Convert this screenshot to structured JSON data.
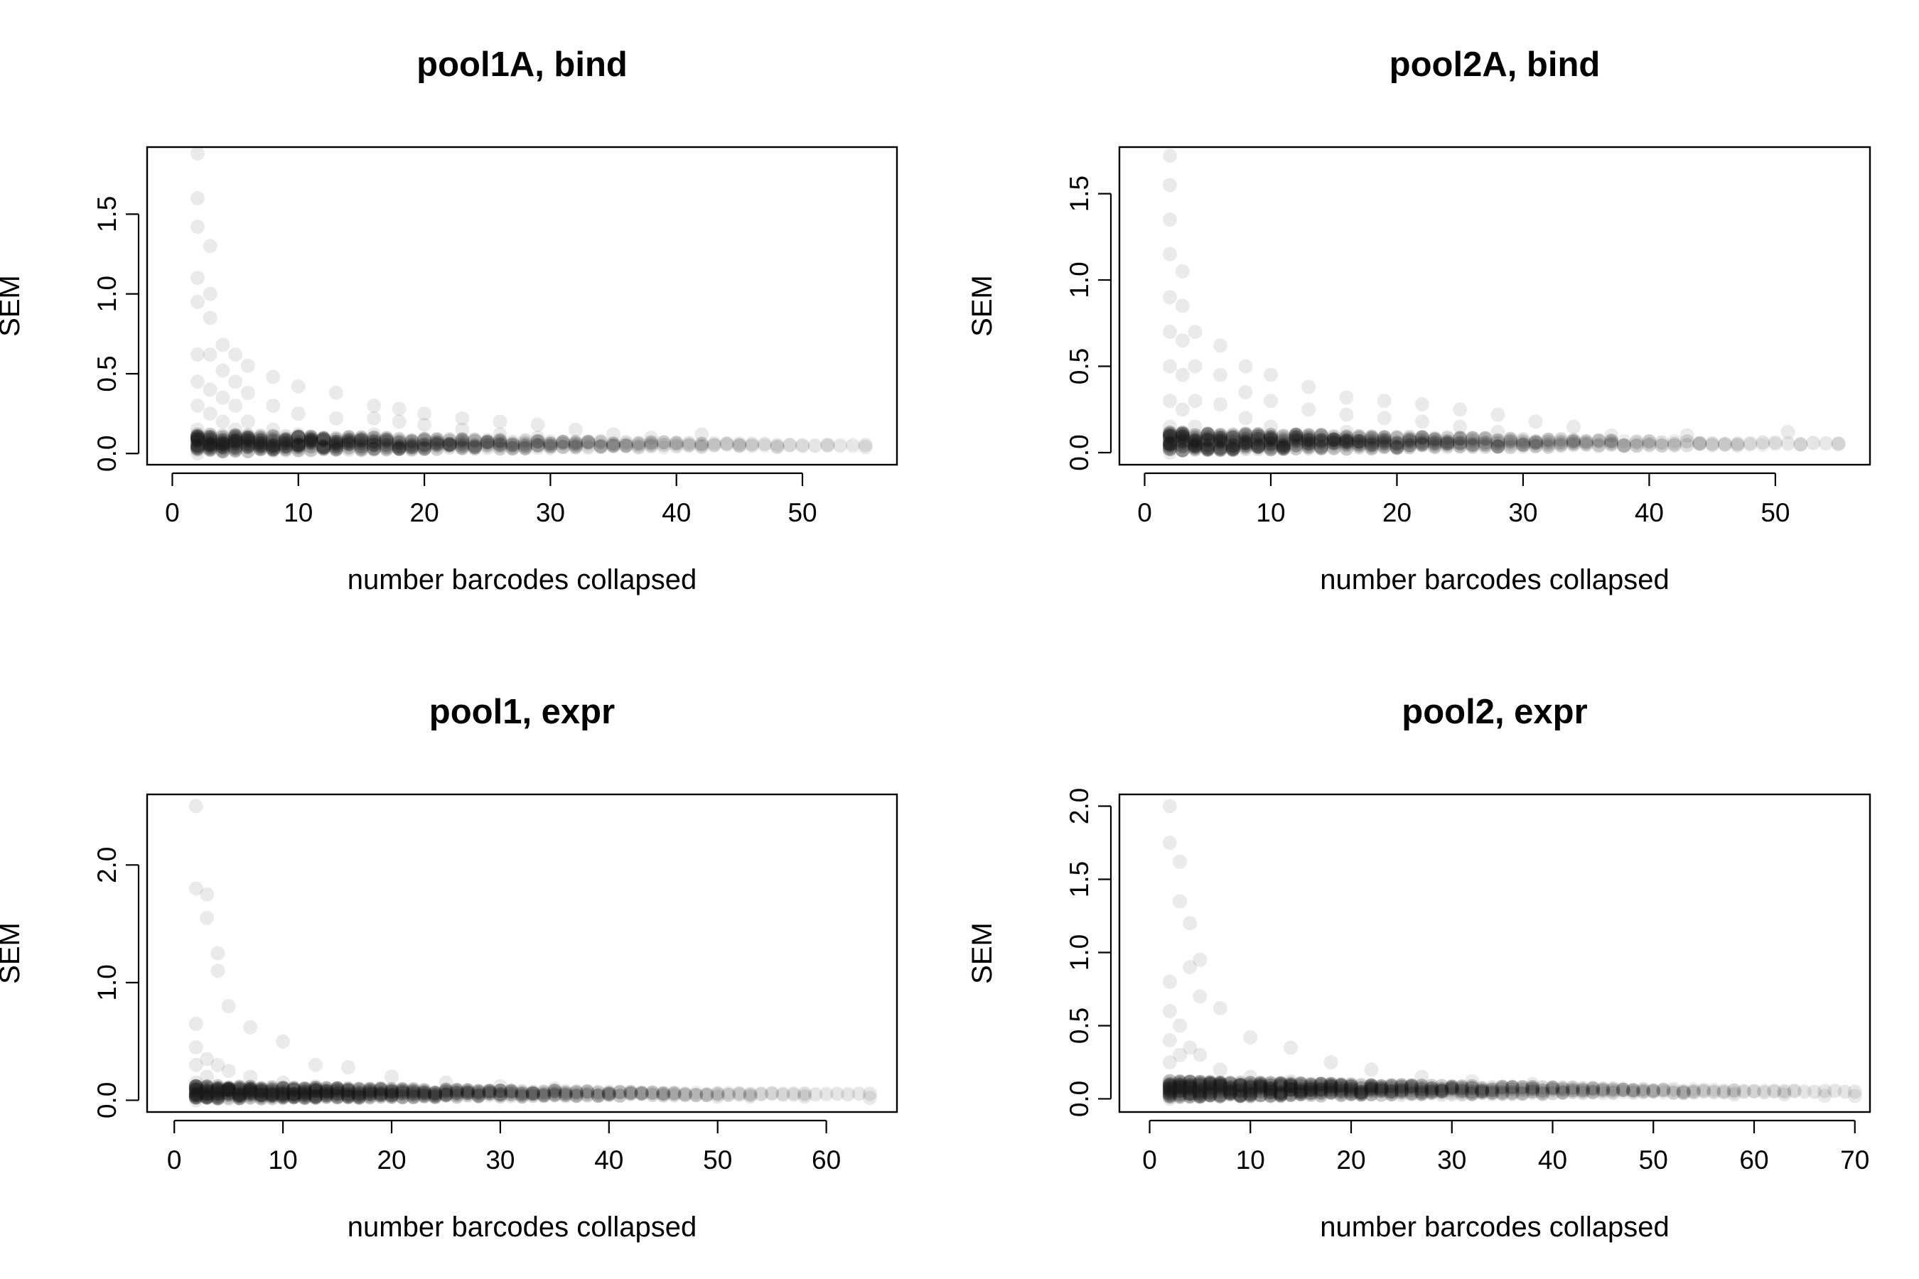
{
  "chart_data": [
    {
      "type": "scatter",
      "title": "pool1A, bind",
      "xlabel": "number barcodes collapsed",
      "ylabel": "SEM",
      "xlim": [
        -2,
        57.5
      ],
      "ylim": [
        -0.07,
        1.92
      ],
      "xticks": [
        0,
        10,
        20,
        30,
        40,
        50
      ],
      "yticks": [
        0.0,
        0.5,
        1.0,
        1.5
      ],
      "xtick_labels": [
        "0",
        "10",
        "20",
        "30",
        "40",
        "50"
      ],
      "ytick_labels": [
        "0.0",
        "0.5",
        "1.0",
        "1.5"
      ],
      "grid": false,
      "legend": "none",
      "point_color": "#1a1a1a",
      "x_max_observed": 55,
      "y_max_observed": 1.88,
      "dense_band_sem": 0.05,
      "points": [
        [
          2,
          1.88
        ],
        [
          2,
          1.6
        ],
        [
          2,
          1.42
        ],
        [
          2,
          1.1
        ],
        [
          2,
          0.95
        ],
        [
          2,
          0.62
        ],
        [
          2,
          0.45
        ],
        [
          2,
          0.3
        ],
        [
          2,
          0.15
        ],
        [
          2,
          0.05
        ],
        [
          2,
          0.0
        ],
        [
          3,
          1.3
        ],
        [
          3,
          1.0
        ],
        [
          3,
          0.85
        ],
        [
          3,
          0.62
        ],
        [
          3,
          0.4
        ],
        [
          3,
          0.25
        ],
        [
          3,
          0.12
        ],
        [
          3,
          0.05
        ],
        [
          4,
          0.68
        ],
        [
          4,
          0.52
        ],
        [
          4,
          0.35
        ],
        [
          4,
          0.2
        ],
        [
          4,
          0.05
        ],
        [
          5,
          0.62
        ],
        [
          5,
          0.45
        ],
        [
          5,
          0.3
        ],
        [
          5,
          0.15
        ],
        [
          5,
          0.05
        ],
        [
          6,
          0.55
        ],
        [
          6,
          0.38
        ],
        [
          6,
          0.2
        ],
        [
          6,
          0.05
        ],
        [
          8,
          0.48
        ],
        [
          8,
          0.3
        ],
        [
          8,
          0.15
        ],
        [
          8,
          0.05
        ],
        [
          10,
          0.42
        ],
        [
          10,
          0.25
        ],
        [
          10,
          0.12
        ],
        [
          10,
          0.05
        ],
        [
          13,
          0.38
        ],
        [
          13,
          0.22
        ],
        [
          13,
          0.05
        ],
        [
          16,
          0.3
        ],
        [
          16,
          0.22
        ],
        [
          16,
          0.12
        ],
        [
          16,
          0.05
        ],
        [
          18,
          0.28
        ],
        [
          18,
          0.2
        ],
        [
          18,
          0.05
        ],
        [
          20,
          0.25
        ],
        [
          20,
          0.18
        ],
        [
          20,
          0.05
        ],
        [
          23,
          0.22
        ],
        [
          23,
          0.15
        ],
        [
          23,
          0.05
        ],
        [
          26,
          0.2
        ],
        [
          26,
          0.12
        ],
        [
          26,
          0.05
        ],
        [
          29,
          0.18
        ],
        [
          29,
          0.1
        ],
        [
          29,
          0.05
        ],
        [
          32,
          0.15
        ],
        [
          32,
          0.05
        ],
        [
          35,
          0.12
        ],
        [
          35,
          0.05
        ],
        [
          38,
          0.1
        ],
        [
          38,
          0.05
        ],
        [
          40,
          0.05
        ],
        [
          42,
          0.12
        ],
        [
          42,
          0.04
        ],
        [
          45,
          0.05
        ],
        [
          48,
          0.04
        ],
        [
          52,
          0.05
        ],
        [
          55,
          0.04
        ]
      ]
    },
    {
      "type": "scatter",
      "title": "pool2A, bind",
      "xlabel": "number barcodes collapsed",
      "ylabel": "SEM",
      "xlim": [
        -2,
        57.5
      ],
      "ylim": [
        -0.07,
        1.77
      ],
      "xticks": [
        0,
        10,
        20,
        30,
        40,
        50
      ],
      "yticks": [
        0.0,
        0.5,
        1.0,
        1.5
      ],
      "xtick_labels": [
        "0",
        "10",
        "20",
        "30",
        "40",
        "50"
      ],
      "ytick_labels": [
        "0.0",
        "0.5",
        "1.0",
        "1.5"
      ],
      "grid": false,
      "legend": "none",
      "point_color": "#1a1a1a",
      "x_max_observed": 55,
      "y_max_observed": 1.72,
      "dense_band_sem": 0.05,
      "points": [
        [
          2,
          1.72
        ],
        [
          2,
          1.55
        ],
        [
          2,
          1.35
        ],
        [
          2,
          1.15
        ],
        [
          2,
          0.9
        ],
        [
          2,
          0.7
        ],
        [
          2,
          0.5
        ],
        [
          2,
          0.3
        ],
        [
          2,
          0.15
        ],
        [
          2,
          0.05
        ],
        [
          2,
          0.0
        ],
        [
          3,
          1.05
        ],
        [
          3,
          0.85
        ],
        [
          3,
          0.65
        ],
        [
          3,
          0.45
        ],
        [
          3,
          0.25
        ],
        [
          3,
          0.05
        ],
        [
          4,
          0.7
        ],
        [
          4,
          0.5
        ],
        [
          4,
          0.3
        ],
        [
          4,
          0.15
        ],
        [
          4,
          0.05
        ],
        [
          6,
          0.62
        ],
        [
          6,
          0.45
        ],
        [
          6,
          0.28
        ],
        [
          6,
          0.05
        ],
        [
          8,
          0.5
        ],
        [
          8,
          0.35
        ],
        [
          8,
          0.2
        ],
        [
          8,
          0.05
        ],
        [
          10,
          0.45
        ],
        [
          10,
          0.3
        ],
        [
          10,
          0.15
        ],
        [
          10,
          0.05
        ],
        [
          13,
          0.38
        ],
        [
          13,
          0.25
        ],
        [
          13,
          0.05
        ],
        [
          16,
          0.32
        ],
        [
          16,
          0.22
        ],
        [
          16,
          0.12
        ],
        [
          16,
          0.05
        ],
        [
          19,
          0.3
        ],
        [
          19,
          0.2
        ],
        [
          19,
          0.05
        ],
        [
          22,
          0.28
        ],
        [
          22,
          0.18
        ],
        [
          22,
          0.05
        ],
        [
          25,
          0.25
        ],
        [
          25,
          0.15
        ],
        [
          25,
          0.05
        ],
        [
          28,
          0.22
        ],
        [
          28,
          0.12
        ],
        [
          28,
          0.05
        ],
        [
          31,
          0.18
        ],
        [
          31,
          0.05
        ],
        [
          34,
          0.15
        ],
        [
          34,
          0.05
        ],
        [
          37,
          0.1
        ],
        [
          37,
          0.05
        ],
        [
          40,
          0.05
        ],
        [
          43,
          0.1
        ],
        [
          44,
          0.05
        ],
        [
          47,
          0.04
        ],
        [
          51,
          0.12
        ],
        [
          52,
          0.05
        ],
        [
          55,
          0.05
        ]
      ]
    },
    {
      "type": "scatter",
      "title": "pool1, expr",
      "xlabel": "number barcodes collapsed",
      "ylabel": "SEM",
      "xlim": [
        -2.5,
        66.5
      ],
      "ylim": [
        -0.1,
        2.6
      ],
      "xticks": [
        0,
        10,
        20,
        30,
        40,
        50,
        60
      ],
      "yticks": [
        0.0,
        1.0,
        2.0
      ],
      "xtick_labels": [
        "0",
        "10",
        "20",
        "30",
        "40",
        "50",
        "60"
      ],
      "ytick_labels": [
        "0.0",
        "1.0",
        "2.0"
      ],
      "grid": false,
      "legend": "none",
      "point_color": "#1a1a1a",
      "x_max_observed": 64,
      "y_max_observed": 2.5,
      "dense_band_sem": 0.05,
      "points": [
        [
          2,
          2.5
        ],
        [
          2,
          1.8
        ],
        [
          2,
          0.65
        ],
        [
          2,
          0.45
        ],
        [
          2,
          0.3
        ],
        [
          2,
          0.15
        ],
        [
          2,
          0.05
        ],
        [
          2,
          0.0
        ],
        [
          3,
          1.75
        ],
        [
          3,
          1.55
        ],
        [
          3,
          0.35
        ],
        [
          3,
          0.2
        ],
        [
          3,
          0.1
        ],
        [
          4,
          1.25
        ],
        [
          4,
          1.1
        ],
        [
          4,
          0.3
        ],
        [
          4,
          0.12
        ],
        [
          5,
          0.8
        ],
        [
          5,
          0.25
        ],
        [
          5,
          0.1
        ],
        [
          7,
          0.62
        ],
        [
          7,
          0.2
        ],
        [
          7,
          0.08
        ],
        [
          10,
          0.5
        ],
        [
          10,
          0.15
        ],
        [
          10,
          0.07
        ],
        [
          13,
          0.3
        ],
        [
          13,
          0.12
        ],
        [
          13,
          0.06
        ],
        [
          16,
          0.28
        ],
        [
          16,
          0.1
        ],
        [
          16,
          0.05
        ],
        [
          20,
          0.2
        ],
        [
          20,
          0.08
        ],
        [
          20,
          0.05
        ],
        [
          25,
          0.15
        ],
        [
          25,
          0.05
        ],
        [
          30,
          0.12
        ],
        [
          30,
          0.05
        ],
        [
          35,
          0.1
        ],
        [
          35,
          0.05
        ],
        [
          40,
          0.05
        ],
        [
          45,
          0.04
        ],
        [
          50,
          0.03
        ],
        [
          53,
          0.03
        ],
        [
          58,
          0.03
        ],
        [
          64,
          0.02
        ]
      ]
    },
    {
      "type": "scatter",
      "title": "pool2, expr",
      "xlabel": "number barcodes collapsed",
      "ylabel": "SEM",
      "xlim": [
        -3,
        71.5
      ],
      "ylim": [
        -0.09,
        2.08
      ],
      "xticks": [
        0,
        10,
        20,
        30,
        40,
        50,
        60,
        70
      ],
      "yticks": [
        0.0,
        0.5,
        1.0,
        1.5,
        2.0
      ],
      "xtick_labels": [
        "0",
        "10",
        "20",
        "30",
        "40",
        "50",
        "60",
        "70"
      ],
      "ytick_labels": [
        "0.0",
        "0.5",
        "1.0",
        "1.5",
        "2.0"
      ],
      "grid": false,
      "legend": "none",
      "point_color": "#1a1a1a",
      "x_max_observed": 70,
      "y_max_observed": 2.0,
      "dense_band_sem": 0.05,
      "points": [
        [
          2,
          2.0
        ],
        [
          2,
          1.75
        ],
        [
          2,
          0.8
        ],
        [
          2,
          0.6
        ],
        [
          2,
          0.4
        ],
        [
          2,
          0.25
        ],
        [
          2,
          0.1
        ],
        [
          2,
          0.0
        ],
        [
          3,
          1.62
        ],
        [
          3,
          1.35
        ],
        [
          3,
          0.5
        ],
        [
          3,
          0.3
        ],
        [
          3,
          0.12
        ],
        [
          4,
          1.2
        ],
        [
          4,
          0.9
        ],
        [
          4,
          0.35
        ],
        [
          4,
          0.12
        ],
        [
          5,
          0.95
        ],
        [
          5,
          0.7
        ],
        [
          5,
          0.3
        ],
        [
          5,
          0.1
        ],
        [
          7,
          0.62
        ],
        [
          7,
          0.2
        ],
        [
          7,
          0.08
        ],
        [
          10,
          0.42
        ],
        [
          10,
          0.15
        ],
        [
          10,
          0.07
        ],
        [
          14,
          0.35
        ],
        [
          14,
          0.12
        ],
        [
          14,
          0.06
        ],
        [
          18,
          0.25
        ],
        [
          18,
          0.1
        ],
        [
          18,
          0.05
        ],
        [
          22,
          0.2
        ],
        [
          22,
          0.08
        ],
        [
          22,
          0.05
        ],
        [
          27,
          0.15
        ],
        [
          27,
          0.05
        ],
        [
          32,
          0.12
        ],
        [
          32,
          0.05
        ],
        [
          38,
          0.1
        ],
        [
          38,
          0.05
        ],
        [
          44,
          0.05
        ],
        [
          48,
          0.04
        ],
        [
          53,
          0.04
        ],
        [
          58,
          0.03
        ],
        [
          63,
          0.03
        ],
        [
          67,
          0.02
        ],
        [
          70,
          0.02
        ]
      ]
    }
  ]
}
